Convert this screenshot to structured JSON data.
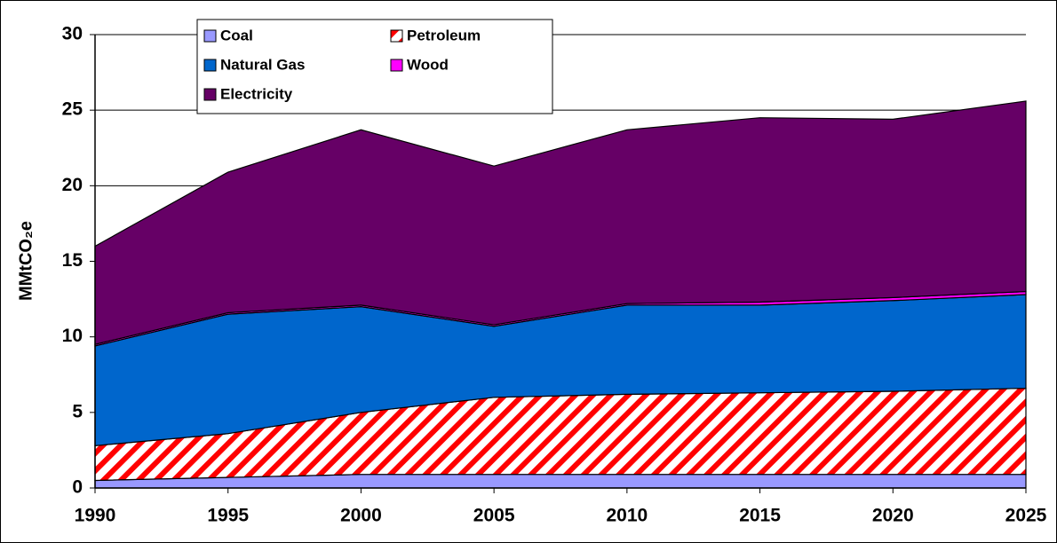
{
  "chart_data": {
    "type": "stacked_area",
    "y_label": "MMtCO₂e",
    "x": [
      1990,
      1995,
      2000,
      2005,
      2010,
      2015,
      2020,
      2025
    ],
    "xlim": [
      1990,
      2025
    ],
    "xticks": [
      1990,
      1995,
      2000,
      2005,
      2010,
      2015,
      2020,
      2025
    ],
    "ylim": [
      0,
      30
    ],
    "yticks": [
      0,
      5,
      10,
      15,
      20,
      25,
      30
    ],
    "grid": true,
    "series": [
      {
        "name": "Coal",
        "color": "#9999ff",
        "values": [
          0.5,
          0.7,
          0.9,
          0.9,
          0.9,
          0.9,
          0.9,
          0.9
        ]
      },
      {
        "name": "Petroleum",
        "color": "#ff0000",
        "pattern": "hatch",
        "values": [
          2.3,
          2.9,
          4.1,
          5.1,
          5.3,
          5.4,
          5.5,
          5.7
        ]
      },
      {
        "name": "Natural Gas",
        "color": "#0066cc",
        "values": [
          6.6,
          7.9,
          7.0,
          4.7,
          5.9,
          5.8,
          6.0,
          6.2
        ]
      },
      {
        "name": "Wood",
        "color": "#ff00ff",
        "values": [
          0.1,
          0.1,
          0.1,
          0.1,
          0.1,
          0.2,
          0.2,
          0.2
        ]
      },
      {
        "name": "Electricity",
        "color": "#660066",
        "values": [
          6.5,
          9.3,
          11.6,
          10.5,
          11.5,
          12.2,
          11.8,
          12.6
        ]
      }
    ]
  }
}
